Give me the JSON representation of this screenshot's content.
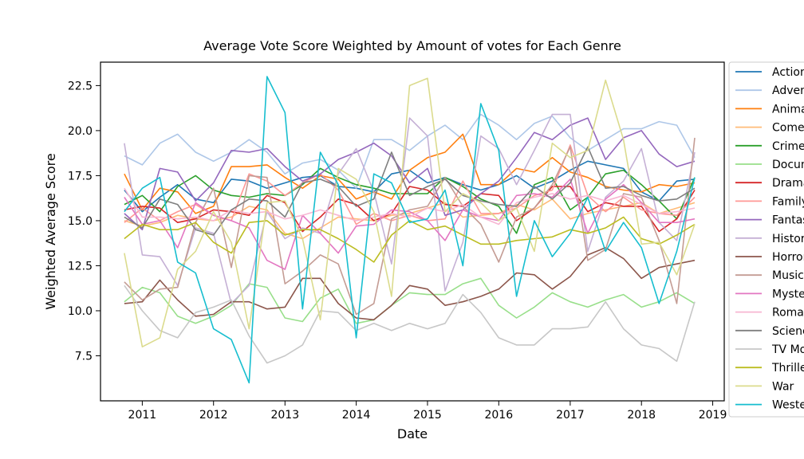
{
  "chart_data": {
    "type": "line",
    "title": "Average Vote Score Weighted by Amount of votes for Each Genre",
    "xlabel": "Date",
    "ylabel": "Weighted Average Score",
    "xlim": [
      "2010-06-01",
      "2019-03-01"
    ],
    "ylim": [
      5.0,
      23.8
    ],
    "x_ticks": [
      "2011",
      "2012",
      "2013",
      "2014",
      "2015",
      "2016",
      "2017",
      "2018",
      "2019"
    ],
    "y_ticks": [
      "7.5",
      "10.0",
      "12.5",
      "15.0",
      "17.5",
      "20.0",
      "22.5"
    ],
    "grid": false,
    "legend_position": "right",
    "x": [
      "2010-10-01",
      "2011-01-01",
      "2011-04-01",
      "2011-07-01",
      "2011-10-01",
      "2012-01-01",
      "2012-04-01",
      "2012-07-01",
      "2012-10-01",
      "2013-01-01",
      "2013-04-01",
      "2013-07-01",
      "2013-10-01",
      "2014-01-01",
      "2014-04-01",
      "2014-07-01",
      "2014-10-01",
      "2015-01-01",
      "2015-04-01",
      "2015-07-01",
      "2015-10-01",
      "2016-01-01",
      "2016-04-01",
      "2016-07-01",
      "2016-10-01",
      "2017-01-01",
      "2017-04-01",
      "2017-07-01",
      "2017-10-01",
      "2018-01-01",
      "2018-04-01",
      "2018-07-01",
      "2018-10-01"
    ],
    "series": [
      {
        "name": "Action",
        "color": "#1f77b4",
        "values": [
          16.7,
          15.5,
          16.3,
          17.0,
          16.2,
          16.0,
          17.3,
          17.2,
          16.8,
          17.1,
          17.4,
          17.5,
          16.9,
          16.8,
          16.6,
          17.6,
          17.8,
          17.1,
          17.4,
          17.0,
          16.7,
          17.0,
          17.5,
          16.8,
          17.2,
          17.8,
          18.3,
          18.1,
          17.9,
          16.6,
          16.1,
          17.2,
          17.3
        ]
      },
      {
        "name": "Adventure",
        "color": "#aec7e8",
        "values": [
          18.6,
          18.1,
          19.3,
          19.8,
          18.8,
          18.3,
          18.8,
          19.5,
          18.8,
          17.6,
          18.2,
          18.4,
          17.8,
          16.8,
          19.5,
          19.5,
          18.9,
          19.7,
          20.3,
          19.5,
          20.9,
          20.3,
          19.5,
          20.4,
          20.8,
          19.6,
          18.9,
          19.5,
          20.1,
          20.1,
          20.5,
          20.3,
          18.5
        ]
      },
      {
        "name": "Animation",
        "color": "#ff7f0e",
        "values": [
          17.6,
          15.6,
          16.8,
          16.6,
          15.4,
          15.8,
          18.0,
          18.0,
          18.1,
          17.4,
          16.8,
          17.5,
          17.3,
          16.2,
          16.6,
          16.2,
          17.8,
          18.5,
          18.8,
          19.8,
          17.0,
          17.0,
          17.9,
          17.7,
          18.5,
          17.7,
          17.4,
          16.9,
          16.7,
          16.6,
          17.0,
          16.9,
          17.1
        ]
      },
      {
        "name": "Comedy",
        "color": "#ffbb78",
        "values": [
          15.0,
          14.7,
          14.9,
          15.3,
          15.1,
          15.0,
          15.2,
          15.8,
          15.6,
          14.3,
          14.0,
          14.6,
          15.2,
          15.1,
          15.0,
          15.3,
          15.4,
          15.7,
          16.0,
          15.2,
          15.3,
          15.4,
          15.9,
          15.6,
          16.2,
          15.1,
          15.4,
          15.6,
          15.8,
          16.0,
          15.4,
          15.7,
          16.0
        ]
      },
      {
        "name": "Crime",
        "color": "#2ca02c",
        "values": [
          15.9,
          16.4,
          15.5,
          16.9,
          17.5,
          16.7,
          16.4,
          16.3,
          16.5,
          16.4,
          17.0,
          17.9,
          17.4,
          17.0,
          16.8,
          16.5,
          16.5,
          16.5,
          17.4,
          16.9,
          16.2,
          15.8,
          14.3,
          17.0,
          17.4,
          15.6,
          16.3,
          17.6,
          17.8,
          17.0,
          16.1,
          15.1,
          17.4
        ]
      },
      {
        "name": "Documentary",
        "color": "#98df8a",
        "values": [
          10.5,
          11.3,
          11.0,
          9.7,
          9.3,
          9.7,
          10.3,
          11.5,
          11.3,
          9.6,
          9.4,
          10.7,
          11.2,
          9.3,
          9.5,
          10.3,
          11.0,
          10.9,
          10.9,
          11.5,
          11.8,
          10.3,
          9.6,
          10.2,
          11.0,
          10.5,
          10.2,
          10.6,
          10.9,
          10.2,
          10.5,
          11.0,
          10.4
        ]
      },
      {
        "name": "Drama",
        "color": "#d62728",
        "values": [
          15.6,
          15.8,
          15.7,
          14.9,
          15.1,
          15.6,
          15.5,
          15.3,
          16.4,
          16.0,
          14.4,
          15.2,
          16.2,
          15.9,
          15.0,
          15.4,
          16.9,
          16.7,
          15.9,
          15.8,
          16.5,
          16.4,
          15.0,
          15.7,
          16.9,
          16.9,
          15.5,
          16.0,
          15.8,
          15.8,
          14.4,
          15.1,
          16.7
        ]
      },
      {
        "name": "Family",
        "color": "#ff9896",
        "values": [
          14.9,
          15.7,
          15.0,
          15.5,
          15.9,
          15.3,
          15.0,
          17.6,
          17.2,
          16.4,
          17.1,
          17.6,
          16.7,
          14.8,
          15.4,
          15.0,
          15.3,
          15.0,
          15.1,
          17.2,
          15.4,
          15.4,
          15.7,
          16.4,
          16.7,
          19.2,
          16.4,
          15.5,
          16.3,
          15.6,
          15.4,
          15.3,
          16.3
        ]
      },
      {
        "name": "Fantasy",
        "color": "#9467bd",
        "values": [
          15.4,
          14.5,
          17.9,
          17.7,
          16.1,
          17.1,
          18.9,
          18.8,
          19.0,
          18.0,
          17.2,
          17.6,
          18.4,
          18.8,
          19.3,
          18.6,
          17.1,
          17.9,
          15.3,
          15.6,
          16.5,
          17.2,
          18.5,
          19.9,
          19.5,
          20.3,
          20.7,
          18.4,
          19.6,
          20.0,
          18.7,
          18.0,
          18.3
        ]
      },
      {
        "name": "History",
        "color": "#c5b0d5",
        "values": [
          19.3,
          13.1,
          13.0,
          11.4,
          14.6,
          14.3,
          10.4,
          11.4,
          15.5,
          14.0,
          14.6,
          14.3,
          17.6,
          19.0,
          16.6,
          12.6,
          20.7,
          19.7,
          11.1,
          13.8,
          19.7,
          19.0,
          17.0,
          18.9,
          20.9,
          20.9,
          13.3,
          16.3,
          17.2,
          19.0,
          14.9,
          13.9,
          18.8
        ]
      },
      {
        "name": "Horror",
        "color": "#8c564b",
        "values": [
          10.4,
          10.5,
          11.7,
          10.6,
          9.7,
          9.8,
          10.5,
          10.5,
          10.1,
          10.2,
          11.8,
          11.8,
          10.4,
          9.6,
          9.5,
          10.3,
          11.4,
          11.2,
          10.3,
          10.5,
          10.8,
          11.2,
          12.1,
          12.0,
          11.2,
          11.9,
          13.1,
          13.5,
          12.9,
          11.8,
          12.4,
          12.6,
          12.8
        ]
      },
      {
        "name": "Music",
        "color": "#c49c94",
        "values": [
          11.6,
          10.6,
          11.2,
          11.3,
          14.9,
          16.8,
          12.4,
          17.5,
          17.4,
          11.5,
          12.2,
          13.1,
          12.6,
          9.8,
          10.4,
          15.1,
          15.6,
          15.8,
          17.4,
          15.8,
          14.8,
          12.7,
          15.2,
          15.7,
          17.0,
          19.1,
          12.8,
          13.4,
          16.5,
          16.3,
          13.9,
          10.4,
          19.6
        ]
      },
      {
        "name": "Mystery",
        "color": "#e377c2",
        "values": [
          16.3,
          14.8,
          15.0,
          13.5,
          16.0,
          15.3,
          15.0,
          14.6,
          12.8,
          12.3,
          15.3,
          14.3,
          13.2,
          14.7,
          14.8,
          15.6,
          15.5,
          15.0,
          13.9,
          15.6,
          15.2,
          15.0,
          16.4,
          16.5,
          16.3,
          17.3,
          14.3,
          16.2,
          17.0,
          16.0,
          14.9,
          14.9,
          15.1
        ]
      },
      {
        "name": "Romance",
        "color": "#f7b6d2",
        "values": [
          16.8,
          15.2,
          15.2,
          15.1,
          15.2,
          15.0,
          15.6,
          15.4,
          15.5,
          15.1,
          15.3,
          15.6,
          15.3,
          15.0,
          15.2,
          15.4,
          15.2,
          15.7,
          15.5,
          15.9,
          15.2,
          14.8,
          16.0,
          16.3,
          16.5,
          16.2,
          16.4,
          16.1,
          16.4,
          15.9,
          15.4,
          15.5,
          15.7
        ]
      },
      {
        "name": "Science Fiction",
        "color": "#7f7f7f",
        "values": [
          15.2,
          14.6,
          16.2,
          15.9,
          14.5,
          14.2,
          15.6,
          16.2,
          16.1,
          15.2,
          17.1,
          17.3,
          16.9,
          15.8,
          16.2,
          18.8,
          16.4,
          16.9,
          17.3,
          16.4,
          16.1,
          15.9,
          15.8,
          16.9,
          16.2,
          17.1,
          19.1,
          16.8,
          16.9,
          16.4,
          16.1,
          16.2,
          16.8
        ]
      },
      {
        "name": "TV Movie",
        "color": "#c7c7c7",
        "values": [
          11.4,
          10.0,
          8.9,
          8.5,
          9.9,
          10.2,
          10.6,
          8.6,
          7.1,
          7.5,
          8.1,
          10.0,
          9.9,
          8.9,
          9.3,
          8.9,
          9.3,
          9.0,
          9.3,
          10.9,
          9.9,
          8.5,
          8.1,
          8.1,
          9.0,
          9.0,
          9.1,
          10.5,
          9.0,
          8.1,
          7.9,
          7.2,
          10.5
        ]
      },
      {
        "name": "Thriller",
        "color": "#bcbd22",
        "values": [
          14.0,
          14.8,
          14.5,
          14.5,
          14.9,
          13.8,
          13.2,
          14.9,
          15.0,
          14.2,
          14.5,
          14.5,
          14.0,
          13.4,
          12.7,
          14.2,
          15.0,
          14.5,
          14.7,
          14.2,
          13.7,
          13.7,
          13.9,
          14.0,
          14.1,
          14.5,
          14.3,
          14.6,
          15.2,
          14.0,
          13.7,
          14.2,
          14.8
        ]
      },
      {
        "name": "War",
        "color": "#dbdb8d",
        "values": [
          13.2,
          8.0,
          8.5,
          12.3,
          13.3,
          15.5,
          13.8,
          9.0,
          16.0,
          16.1,
          14.0,
          9.5,
          17.9,
          17.3,
          15.5,
          10.8,
          22.5,
          22.9,
          15.5,
          16.5,
          16.0,
          15.0,
          15.7,
          13.3,
          19.3,
          18.5,
          18.9,
          22.8,
          19.5,
          13.7,
          13.8,
          12.0,
          14.8
        ]
      },
      {
        "name": "Western",
        "color": "#17becf",
        "values": [
          15.5,
          16.8,
          17.4,
          12.7,
          12.1,
          9.0,
          8.4,
          6.0,
          23.0,
          21.0,
          10.1,
          18.8,
          17.0,
          8.5,
          17.6,
          17.1,
          14.9,
          15.1,
          16.7,
          12.5,
          21.5,
          18.9,
          10.8,
          15.0,
          13.0,
          14.3,
          16.3,
          13.3,
          14.9,
          13.5,
          10.4,
          13.3,
          17.4
        ]
      }
    ]
  }
}
